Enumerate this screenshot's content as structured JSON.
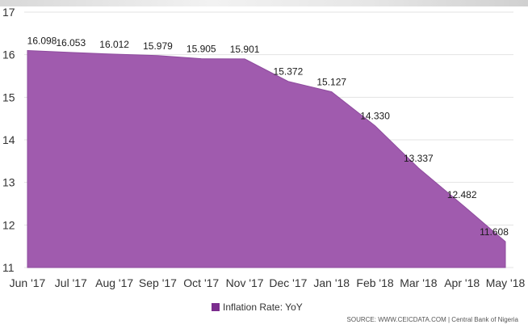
{
  "chart_data": {
    "type": "area",
    "categories": [
      "Jun '17",
      "Jul '17",
      "Aug '17",
      "Sep '17",
      "Oct '17",
      "Nov '17",
      "Dec '17",
      "Jan '18",
      "Feb '18",
      "Mar '18",
      "Apr '18",
      "May '18"
    ],
    "series": [
      {
        "name": "Inflation Rate: YoY",
        "values": [
          16.098,
          16.053,
          16.012,
          15.979,
          15.905,
          15.901,
          15.372,
          15.127,
          14.33,
          13.337,
          12.482,
          11.608
        ],
        "data_labels": [
          "16.098",
          "16.053",
          "16.012",
          "15.979",
          "15.905",
          "15.901",
          "15.372",
          "15.127",
          "14.330",
          "13.337",
          "12.482",
          "11.608"
        ],
        "color": "#a05bae"
      }
    ],
    "y_ticks": [
      "11",
      "12",
      "13",
      "14",
      "15",
      "16",
      "17"
    ],
    "ylim": [
      11,
      17
    ],
    "grid": true,
    "legend": "bottom",
    "title": "",
    "xlabel": "",
    "ylabel": ""
  },
  "legend": {
    "label": "Inflation Rate: YoY",
    "color": "#7b2d8e"
  },
  "source": "SOURCE: WWW.CEICDATA.COM | Central Bank of Nigeria"
}
